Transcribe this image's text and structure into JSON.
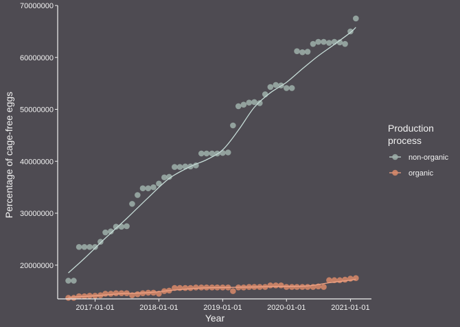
{
  "chart_data": {
    "type": "scatter",
    "xlabel": "Year",
    "ylabel": "Percentage of cage-free eggs",
    "x_ticks": [
      "2017-01-01",
      "2018-01-01",
      "2019-01-01",
      "2020-01-01",
      "2021-01-01"
    ],
    "y_ticks": [
      "20000000",
      "30000000",
      "40000000",
      "50000000",
      "60000000",
      "70000000"
    ],
    "xlim": [
      "2016-06-01",
      "2021-05-01"
    ],
    "ylim": [
      13500000,
      70000000
    ],
    "grid": false,
    "legend": {
      "title": "Production process",
      "placement": "right",
      "items": [
        "non-organic",
        "organic"
      ]
    },
    "series": [
      {
        "name": "non-organic",
        "color": "#9fb0aa",
        "line_color": "#c7ddd8",
        "points": [
          [
            "2016-08-01",
            17000000
          ],
          [
            "2016-09-01",
            17000000
          ],
          [
            "2016-10-01",
            23500000
          ],
          [
            "2016-11-01",
            23500000
          ],
          [
            "2016-12-01",
            23500000
          ],
          [
            "2017-01-01",
            23500000
          ],
          [
            "2017-02-01",
            24500000
          ],
          [
            "2017-03-01",
            26300000
          ],
          [
            "2017-04-01",
            26500000
          ],
          [
            "2017-05-01",
            27400000
          ],
          [
            "2017-06-01",
            27400000
          ],
          [
            "2017-07-01",
            27500000
          ],
          [
            "2017-08-01",
            31800000
          ],
          [
            "2017-09-01",
            33500000
          ],
          [
            "2017-10-01",
            34800000
          ],
          [
            "2017-11-01",
            34800000
          ],
          [
            "2017-12-01",
            35000000
          ],
          [
            "2018-01-01",
            35700000
          ],
          [
            "2018-02-01",
            36900000
          ],
          [
            "2018-03-01",
            37000000
          ],
          [
            "2018-04-01",
            38900000
          ],
          [
            "2018-05-01",
            38900000
          ],
          [
            "2018-06-01",
            39000000
          ],
          [
            "2018-07-01",
            39000000
          ],
          [
            "2018-08-01",
            39200000
          ],
          [
            "2018-09-01",
            41500000
          ],
          [
            "2018-10-01",
            41500000
          ],
          [
            "2018-11-01",
            41500000
          ],
          [
            "2018-12-01",
            41500000
          ],
          [
            "2019-01-01",
            41600000
          ],
          [
            "2019-02-01",
            41700000
          ],
          [
            "2019-03-01",
            46900000
          ],
          [
            "2019-04-01",
            50600000
          ],
          [
            "2019-05-01",
            50900000
          ],
          [
            "2019-06-01",
            51300000
          ],
          [
            "2019-07-01",
            51400000
          ],
          [
            "2019-08-01",
            51200000
          ],
          [
            "2019-09-01",
            52900000
          ],
          [
            "2019-10-01",
            54300000
          ],
          [
            "2019-11-01",
            54700000
          ],
          [
            "2019-12-01",
            54600000
          ],
          [
            "2020-01-01",
            54100000
          ],
          [
            "2020-02-01",
            54100000
          ],
          [
            "2020-03-01",
            61200000
          ],
          [
            "2020-04-01",
            61000000
          ],
          [
            "2020-05-01",
            61100000
          ],
          [
            "2020-06-01",
            62600000
          ],
          [
            "2020-07-01",
            63000000
          ],
          [
            "2020-08-01",
            63000000
          ],
          [
            "2020-09-01",
            62800000
          ],
          [
            "2020-10-01",
            63000000
          ],
          [
            "2020-11-01",
            62900000
          ],
          [
            "2020-12-01",
            62600000
          ],
          [
            "2021-01-01",
            65000000
          ],
          [
            "2021-02-01",
            67500000
          ]
        ],
        "trend": [
          [
            "2016-08-01",
            18500000
          ],
          [
            "2016-11-01",
            21300000
          ],
          [
            "2017-03-01",
            25200000
          ],
          [
            "2017-07-01",
            29000000
          ],
          [
            "2017-11-01",
            33000000
          ],
          [
            "2018-03-01",
            36700000
          ],
          [
            "2018-07-01",
            39000000
          ],
          [
            "2018-10-01",
            40300000
          ],
          [
            "2019-01-01",
            42200000
          ],
          [
            "2019-04-01",
            46000000
          ],
          [
            "2019-07-01",
            50400000
          ],
          [
            "2019-10-01",
            53200000
          ],
          [
            "2020-01-01",
            55200000
          ],
          [
            "2020-04-01",
            57800000
          ],
          [
            "2020-07-01",
            60300000
          ],
          [
            "2020-10-01",
            62500000
          ],
          [
            "2021-01-01",
            64800000
          ],
          [
            "2021-02-01",
            65800000
          ]
        ]
      },
      {
        "name": "organic",
        "color": "#d98a6a",
        "line_color": "#f0a385",
        "points": [
          [
            "2016-08-01",
            13700000
          ],
          [
            "2016-09-01",
            13700000
          ],
          [
            "2016-10-01",
            14000000
          ],
          [
            "2016-11-01",
            14000000
          ],
          [
            "2016-12-01",
            14100000
          ],
          [
            "2017-01-01",
            14100000
          ],
          [
            "2017-02-01",
            14200000
          ],
          [
            "2017-03-01",
            14500000
          ],
          [
            "2017-04-01",
            14500000
          ],
          [
            "2017-05-01",
            14600000
          ],
          [
            "2017-06-01",
            14600000
          ],
          [
            "2017-07-01",
            14600000
          ],
          [
            "2017-08-01",
            14200000
          ],
          [
            "2017-09-01",
            14400000
          ],
          [
            "2017-10-01",
            14600000
          ],
          [
            "2017-11-01",
            14700000
          ],
          [
            "2017-12-01",
            14700000
          ],
          [
            "2018-01-01",
            14500000
          ],
          [
            "2018-02-01",
            15000000
          ],
          [
            "2018-03-01",
            15100000
          ],
          [
            "2018-04-01",
            15600000
          ],
          [
            "2018-05-01",
            15600000
          ],
          [
            "2018-06-01",
            15600000
          ],
          [
            "2018-07-01",
            15600000
          ],
          [
            "2018-08-01",
            15700000
          ],
          [
            "2018-09-01",
            15700000
          ],
          [
            "2018-10-01",
            15700000
          ],
          [
            "2018-11-01",
            15700000
          ],
          [
            "2018-12-01",
            15700000
          ],
          [
            "2019-01-01",
            15700000
          ],
          [
            "2019-02-01",
            15700000
          ],
          [
            "2019-03-01",
            15000000
          ],
          [
            "2019-04-01",
            15700000
          ],
          [
            "2019-05-01",
            15700000
          ],
          [
            "2019-06-01",
            15800000
          ],
          [
            "2019-07-01",
            15800000
          ],
          [
            "2019-08-01",
            15800000
          ],
          [
            "2019-09-01",
            15800000
          ],
          [
            "2019-10-01",
            16100000
          ],
          [
            "2019-11-01",
            16100000
          ],
          [
            "2019-12-01",
            16100000
          ],
          [
            "2020-01-01",
            15800000
          ],
          [
            "2020-02-01",
            15800000
          ],
          [
            "2020-03-01",
            15800000
          ],
          [
            "2020-04-01",
            15800000
          ],
          [
            "2020-05-01",
            15800000
          ],
          [
            "2020-06-01",
            15800000
          ],
          [
            "2020-07-01",
            15900000
          ],
          [
            "2020-08-01",
            15800000
          ],
          [
            "2020-09-01",
            17100000
          ],
          [
            "2020-10-01",
            17100000
          ],
          [
            "2020-11-01",
            17100000
          ],
          [
            "2020-12-01",
            17200000
          ],
          [
            "2021-01-01",
            17400000
          ],
          [
            "2021-02-01",
            17500000
          ]
        ],
        "trend": [
          [
            "2016-08-01",
            13800000
          ],
          [
            "2017-01-01",
            14100000
          ],
          [
            "2017-06-01",
            14500000
          ],
          [
            "2017-11-01",
            14700000
          ],
          [
            "2018-04-01",
            15200000
          ],
          [
            "2018-09-01",
            15600000
          ],
          [
            "2019-02-01",
            15700000
          ],
          [
            "2019-07-01",
            15800000
          ],
          [
            "2019-12-01",
            15900000
          ],
          [
            "2020-05-01",
            16000000
          ],
          [
            "2020-09-01",
            16600000
          ],
          [
            "2021-01-01",
            17100000
          ],
          [
            "2021-02-01",
            17300000
          ]
        ]
      }
    ]
  }
}
